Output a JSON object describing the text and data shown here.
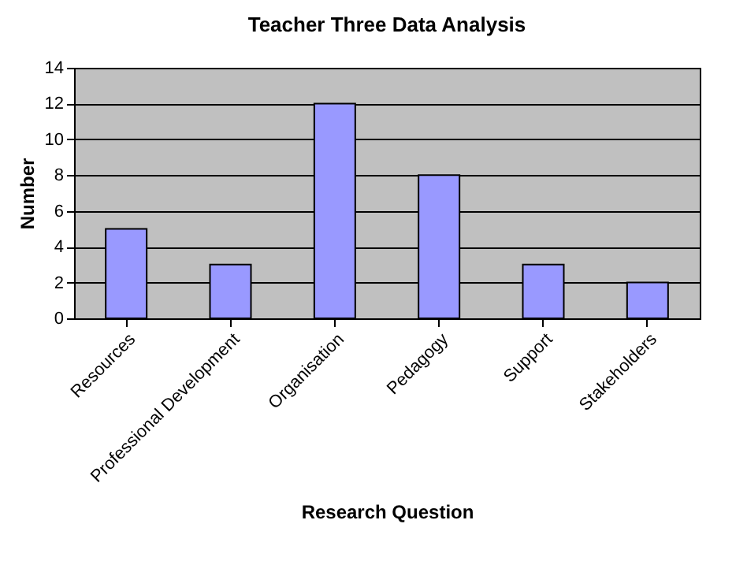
{
  "chart_data": {
    "type": "bar",
    "title": "Teacher Three Data Analysis",
    "xlabel": "Research Question",
    "ylabel": "Number",
    "categories": [
      "Resources",
      "Professional Development",
      "Organisation",
      "Pedagogy",
      "Support",
      "Stakeholders"
    ],
    "values": [
      5,
      3,
      12,
      8,
      3,
      2
    ],
    "color": "#9999ff",
    "ylim": [
      0,
      14
    ],
    "yticks": [
      0,
      2,
      4,
      6,
      8,
      10,
      12,
      14
    ],
    "grid": "y"
  }
}
